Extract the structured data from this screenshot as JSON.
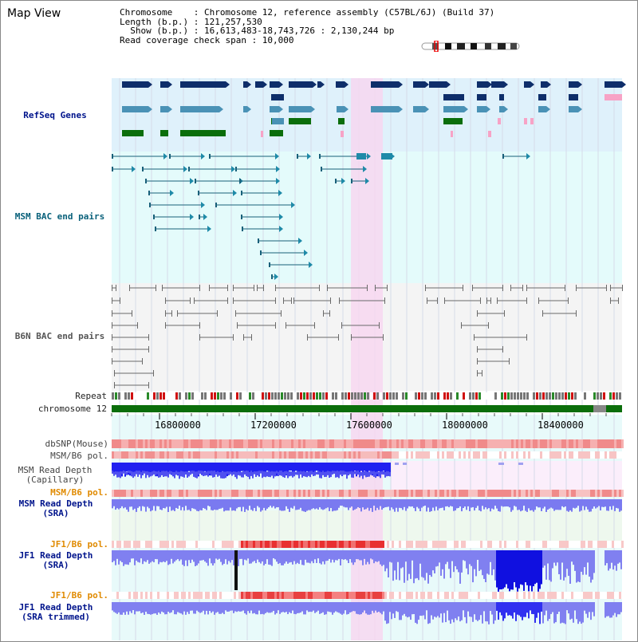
{
  "title": "Map View",
  "info": {
    "line1": "Chromosome    : Chromosome 12, reference assembly (C57BL/6J) (Build 37)",
    "line2": "Length (b.p.) : 121,257,530",
    "line3": "  Show (b.p.) : 16,613,483-18,743,726 : 2,130,244 bp",
    "line4": "Read coverage check span : 10,000"
  },
  "tracks": {
    "refseq": "RefSeq Genes",
    "msm_bac": "MSM BAC end pairs",
    "b6n_bac": "B6N BAC end pairs",
    "repeat": "Repeat",
    "chrom": "chromosome 12",
    "dbsnp": "dbSNP(Mouse)",
    "msm_b6_pol_a": "MSM/B6 pol.",
    "msm_depth_cap_1": "MSM Read Depth",
    "msm_depth_cap_2": "(Capillary)",
    "msm_b6_pol_b": "MSM/B6 pol.",
    "msm_depth_sra_1": "MSM Read Depth",
    "msm_depth_sra_2": "(SRA)",
    "jf1_pol_a": "JF1/B6 pol.",
    "jf1_depth_1": "JF1 Read Depth",
    "jf1_depth_2": "(SRA)",
    "jf1_pol_b": "JF1/B6 pol.",
    "jf1_trim_1": "JF1 Read Depth",
    "jf1_trim_2": "(SRA trimmed)"
  },
  "axis": {
    "ticks": [
      "16800000",
      "17200000",
      "17600000",
      "18000000",
      "18400000"
    ]
  },
  "colors": {
    "refseq_bg": "#dff1fb",
    "msm_bg": "#e4fbfb",
    "highlight": "#f7d7f0",
    "navy": "#0e2e6a",
    "steel": "#4a92b6",
    "green": "#0b6e0b",
    "pink": "#f7a3c6",
    "teal": "#19607a",
    "grey": "#6a6a6a",
    "depth": "#2020f0",
    "depth_light": "#8080f0",
    "snp": "#f08080",
    "label_blue": "#00148c",
    "label_teal": "#08607a",
    "label_orange": "#e08a00"
  }
}
